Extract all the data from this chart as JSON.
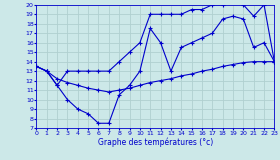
{
  "xlabel": "Graphe des températures (°c)",
  "xlim": [
    0,
    23
  ],
  "ylim": [
    7,
    20
  ],
  "yticks": [
    7,
    8,
    9,
    10,
    11,
    12,
    13,
    14,
    15,
    16,
    17,
    18,
    19,
    20
  ],
  "xticks": [
    0,
    1,
    2,
    3,
    4,
    5,
    6,
    7,
    8,
    9,
    10,
    11,
    12,
    13,
    14,
    15,
    16,
    17,
    18,
    19,
    20,
    21,
    22,
    23
  ],
  "line_color": "#0000cc",
  "bg_color": "#cce8e8",
  "grid_color": "#b0d0d0",
  "series1": {
    "x": [
      0,
      1,
      2,
      3,
      4,
      5,
      6,
      7,
      8,
      9,
      10,
      11,
      12,
      13,
      14,
      15,
      16,
      17,
      18,
      19,
      20,
      21,
      22,
      23
    ],
    "y": [
      13.5,
      13.0,
      12.2,
      11.8,
      11.5,
      11.2,
      11.0,
      10.8,
      11.0,
      11.2,
      11.5,
      11.8,
      12.0,
      12.2,
      12.5,
      12.7,
      13.0,
      13.2,
      13.5,
      13.7,
      13.9,
      14.0,
      14.0,
      14.0
    ]
  },
  "series2": {
    "x": [
      0,
      1,
      2,
      3,
      4,
      5,
      6,
      7,
      8,
      9,
      10,
      11,
      12,
      13,
      14,
      15,
      16,
      17,
      18,
      19,
      20,
      21,
      22,
      23
    ],
    "y": [
      13.5,
      13.0,
      11.5,
      10.0,
      9.0,
      8.5,
      7.5,
      7.5,
      10.5,
      11.5,
      13.0,
      17.5,
      16.0,
      13.0,
      15.5,
      16.0,
      16.5,
      17.0,
      18.5,
      18.8,
      18.5,
      15.5,
      16.0,
      14.0
    ]
  },
  "series3": {
    "x": [
      0,
      1,
      2,
      3,
      4,
      5,
      6,
      7,
      8,
      9,
      10,
      11,
      12,
      13,
      14,
      15,
      16,
      17,
      18,
      19,
      20,
      21,
      22,
      23
    ],
    "y": [
      13.5,
      13.0,
      11.5,
      13.0,
      13.0,
      13.0,
      13.0,
      13.0,
      14.0,
      15.0,
      16.0,
      19.0,
      19.0,
      19.0,
      19.0,
      19.5,
      19.5,
      20.0,
      20.0,
      20.5,
      20.0,
      18.8,
      20.0,
      14.0
    ]
  }
}
